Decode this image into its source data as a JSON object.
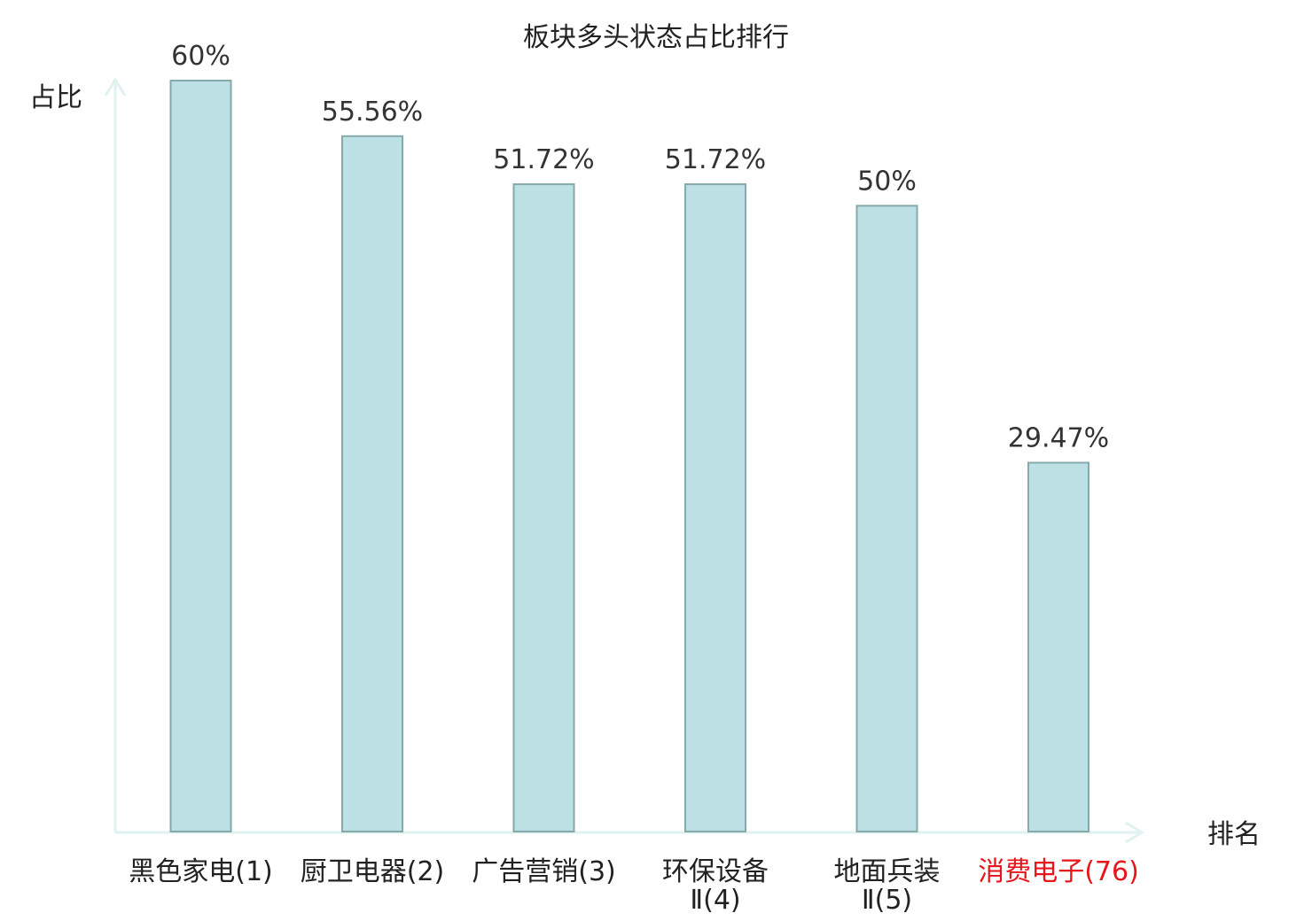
{
  "chart_data": {
    "type": "bar",
    "title": "板块多头状态占比排行",
    "ylabel": "占比",
    "xlabel": "排名",
    "ylim": [
      0,
      60
    ],
    "categories": [
      [
        "黑色家电(1)"
      ],
      [
        "厨卫电器(2)"
      ],
      [
        "广告营销(3)"
      ],
      [
        "环保设备",
        "Ⅱ(4)"
      ],
      [
        "地面兵装",
        "Ⅱ(5)"
      ],
      [
        "消费电子(76)"
      ]
    ],
    "values": [
      60,
      55.56,
      51.72,
      51.72,
      50,
      29.47
    ],
    "value_labels": [
      "60%",
      "55.56%",
      "51.72%",
      "51.72%",
      "50%",
      "29.47%"
    ],
    "highlight_index": 5,
    "colors": {
      "bar_fill": "#bce0e3",
      "bar_stroke": "#86a9ab",
      "axis": "#e0f2ef",
      "text": "#222222",
      "highlight": "#e8151b"
    }
  }
}
